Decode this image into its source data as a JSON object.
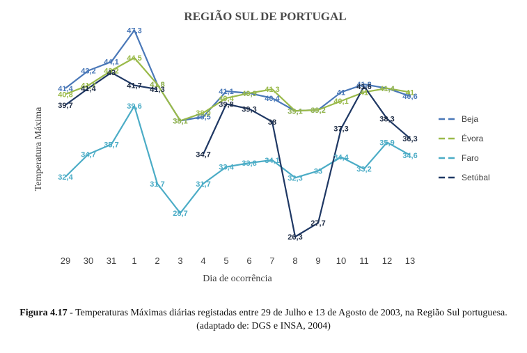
{
  "chart_data": {
    "type": "line",
    "title": "REGIÃO SUL DE PORTUGAL",
    "xlabel": "Dia de ocorrência",
    "ylabel": "Temperatura Máxima",
    "categories": [
      "29",
      "30",
      "31",
      "1",
      "2",
      "3",
      "4",
      "5",
      "6",
      "7",
      "8",
      "9",
      "10",
      "11",
      "12",
      "13"
    ],
    "ylim": [
      20,
      50
    ],
    "grid": false,
    "legend_position": "right",
    "series": [
      {
        "name": "Beja",
        "color": "#4a78b8",
        "values": [
          41.4,
          43.2,
          44.1,
          47.3,
          41.8,
          38.1,
          38.5,
          41.1,
          40.9,
          40.4,
          39.1,
          39.2,
          41,
          41.8,
          41.4,
          40.6
        ],
        "labels": [
          "41,4",
          "43,2",
          "44,1",
          "47,3",
          "41,8",
          "38,1",
          "38,5",
          "41,1",
          "40,9",
          "40,4",
          "39,1",
          "39,2",
          "41",
          "41,8",
          "41,4",
          "40,6"
        ]
      },
      {
        "name": "Évora",
        "color": "#9aba4a",
        "values": [
          40.8,
          41.7,
          43.2,
          44.5,
          41.8,
          38.1,
          38.9,
          40.4,
          40.9,
          41.3,
          39.1,
          39.2,
          40.1,
          41,
          41.4,
          41
        ],
        "labels": [
          "40,8",
          "41,7",
          "43,2",
          "44,5",
          "41,8",
          "38,1",
          "38,9",
          "40,4",
          "40,9",
          "41,3",
          "39,1",
          "39,2",
          "40,1",
          "41",
          "41,4",
          "41"
        ]
      },
      {
        "name": "Faro",
        "color": "#4bacc6",
        "values": [
          32.4,
          34.7,
          35.7,
          39.6,
          31.7,
          28.7,
          31.7,
          33.4,
          33.8,
          34.1,
          32.3,
          33,
          34.4,
          33.2,
          35.9,
          34.6
        ],
        "labels": [
          "32,4",
          "34,7",
          "35,7",
          "39,6",
          "31,7",
          "28,7",
          "31,7",
          "33,4",
          "33,8",
          "34,1",
          "32,3",
          "33",
          "34,4",
          "33,2",
          "35,9",
          "34,6"
        ]
      },
      {
        "name": "Setúbal",
        "color": "#1f3864",
        "values": [
          39.7,
          41.4,
          43,
          41.7,
          41.3,
          null,
          34.7,
          39.8,
          39.3,
          38,
          26.3,
          27.7,
          37.3,
          41.6,
          38.3,
          36.3
        ],
        "labels": [
          "39,7",
          "41,4",
          "43",
          "41,7",
          "41,3",
          "",
          "34,7",
          "39,8",
          "39,3",
          "38",
          "26,3",
          "27,7",
          "37,3",
          "41,6",
          "38,3",
          "36,3"
        ]
      }
    ]
  },
  "caption": {
    "figure_label": "Figura 4.17",
    "text": " - Temperaturas Máximas diárias registadas entre 29 de Julho e 13 de Agosto de 2003, na Região Sul portuguesa. (adaptado de: DGS e INSA, 2004)"
  }
}
